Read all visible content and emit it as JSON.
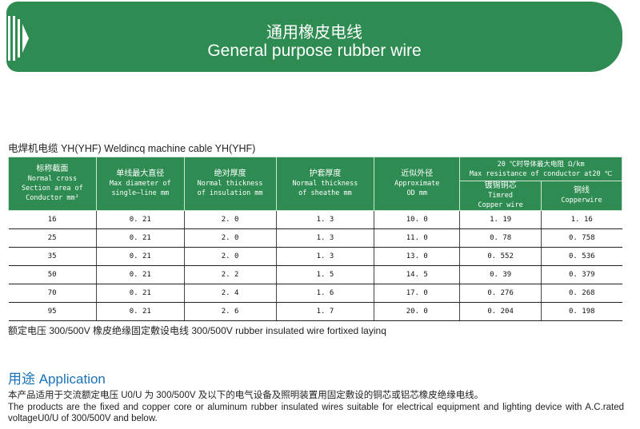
{
  "banner": {
    "title_cn": "通用橡皮电线",
    "title_en": "General purpose rubber wire",
    "color": "#2e8b51"
  },
  "subtitle": "电焊机电缆 YH(YHF)  Weldincq machine cable YH(YHF)",
  "table": {
    "headers": [
      {
        "cn": "标称截面",
        "en": [
          "Normal cross",
          "Section area of",
          "Conductor  mm²"
        ]
      },
      {
        "cn": "单线最大直径",
        "en": [
          "Max diameter of",
          "single—line mm"
        ]
      },
      {
        "cn": "绝对厚度",
        "en": [
          "Normal thickness",
          "of insulation mm"
        ]
      },
      {
        "cn": "护套厚度",
        "en": [
          "Normal thickness",
          "of sheathe mm"
        ]
      },
      {
        "cn": "近似外径",
        "en": [
          "Approximate",
          "OD mm"
        ]
      }
    ],
    "group_header": {
      "cn": "20 ℃时导体最大电阻 Ω/km",
      "en": "Max resistance of conductor at20 ℃"
    },
    "sub_headers": [
      {
        "cn": "镀锡铜芯",
        "en": [
          "Timred",
          "Copper wire"
        ]
      },
      {
        "cn": "铜线",
        "en": [
          "Copperwire"
        ]
      }
    ],
    "rows": [
      [
        "16",
        "0. 21",
        "2. 0",
        "1. 3",
        "10. 0",
        "1. 19",
        "1. 16"
      ],
      [
        "25",
        "0. 21",
        "2. 0",
        "1. 3",
        "11. 0",
        "0. 78",
        "0. 758"
      ],
      [
        "35",
        "0. 21",
        "2. 0",
        "1. 3",
        "13. 0",
        "0. 552",
        "0. 536"
      ],
      [
        "50",
        "0. 21",
        "2. 2",
        "1. 5",
        "14. 5",
        "0. 39",
        "0. 379"
      ],
      [
        "70",
        "0. 21",
        "2. 4",
        "1. 6",
        "17. 0",
        "0. 276",
        "0. 268"
      ],
      [
        "95",
        "0. 21",
        "2. 6",
        "1. 7",
        "20. 0",
        "0. 204",
        "0. 198"
      ]
    ]
  },
  "note": "额定电压 300/500V 橡皮绝缘固定敷设电线 300/500V rubber insulated wire fortixed layinq",
  "application": {
    "title": "用途 Application",
    "cn": "本产品适用于交流额定电压 U0/U 为 300/500V 及以下的电气设备及照明装置用固定敷设的铜芯或铝芯橡皮绝缘电线。",
    "en": "The products are the fixed and copper core or aluminum rubber insulated wires suitable for electrical equipment and lighting device with A.C.rated voltageU0/U of 300/500V and below."
  }
}
